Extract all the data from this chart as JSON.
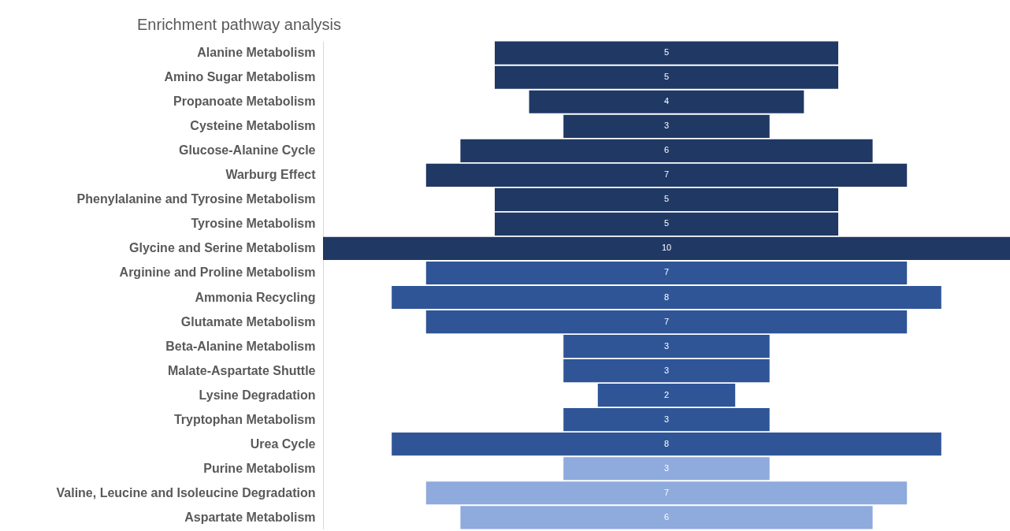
{
  "chart_data": {
    "type": "other",
    "title": "Enrichment pathway analysis",
    "categories": [
      "Alanine Metabolism",
      "Amino Sugar Metabolism",
      "Propanoate Metabolism",
      "Cysteine Metabolism",
      "Glucose-Alanine Cycle",
      "Warburg Effect",
      "Phenylalanine and Tyrosine Metabolism",
      "Tyrosine Metabolism",
      "Glycine and Serine Metabolism",
      "Arginine and Proline Metabolism",
      "Ammonia Recycling",
      "Glutamate Metabolism",
      "Beta-Alanine Metabolism",
      "Malate-Aspartate Shuttle",
      "Lysine Degradation",
      "Tryptophan Metabolism",
      "Urea Cycle",
      "Purine Metabolism",
      "Valine, Leucine and Isoleucine Degradation",
      "Aspartate Metabolism"
    ],
    "values": [
      5,
      5,
      4,
      3,
      6,
      7,
      5,
      5,
      10,
      7,
      8,
      7,
      3,
      3,
      2,
      3,
      8,
      3,
      7,
      6
    ],
    "colors": [
      "#203864",
      "#203864",
      "#203864",
      "#203864",
      "#203864",
      "#203864",
      "#203864",
      "#203864",
      "#203864",
      "#2f5597",
      "#2f5597",
      "#2f5597",
      "#2f5597",
      "#2f5597",
      "#2f5597",
      "#2f5597",
      "#2f5597",
      "#8faadc",
      "#8faadc",
      "#8faadc"
    ],
    "data_labels": true
  }
}
